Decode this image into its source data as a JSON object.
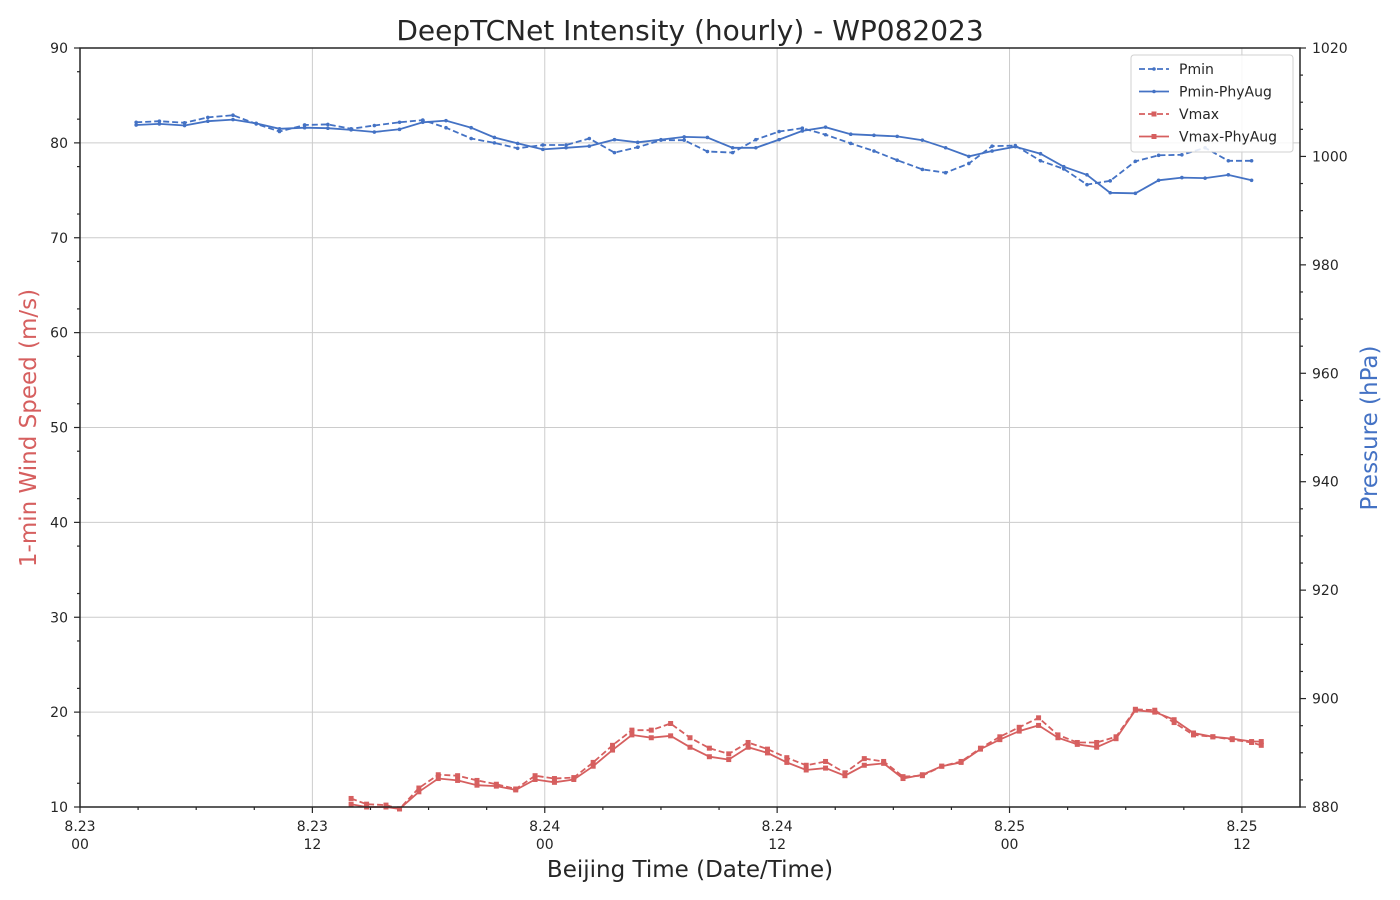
{
  "chart_data": {
    "type": "line",
    "title": "DeepTCNet Intensity (hourly) - WP082023",
    "xlabel": "Beijing Time (Date/Time)",
    "ylabel_left": "1-min Wind Speed (m/s)",
    "ylabel_right": "Pressure (hPa)",
    "ylim_left": [
      10,
      90
    ],
    "ylim_right": [
      880,
      1020
    ],
    "xlim_hours": [
      0,
      63
    ],
    "left_ticks": [
      "10",
      "20",
      "30",
      "40",
      "50",
      "60",
      "70",
      "80",
      "90"
    ],
    "right_ticks": [
      "880",
      "900",
      "920",
      "940",
      "960",
      "980",
      "1000",
      "1020"
    ],
    "x_ticks": [
      {
        "hour": 0,
        "date": "8.23",
        "time": "00"
      },
      {
        "hour": 12,
        "date": "8.23",
        "time": "12"
      },
      {
        "hour": 24,
        "date": "8.24",
        "time": "00"
      },
      {
        "hour": 36,
        "date": "8.24",
        "time": "12"
      },
      {
        "hour": 48,
        "date": "8.25",
        "time": "00"
      },
      {
        "hour": 60,
        "date": "8.25",
        "time": "12"
      }
    ],
    "grid": true,
    "legend_position": "top-right",
    "colors": {
      "pressure": "#4472c4",
      "wind": "#d65f5f"
    },
    "series": [
      {
        "name": "Pmin",
        "axis": "right",
        "style": "dashed",
        "marker": "dot",
        "x": [
          2.9,
          4.1,
          5.4,
          6.6,
          7.9,
          9.1,
          10.3,
          11.6,
          12.8,
          14.0,
          15.2,
          16.5,
          17.7,
          18.9,
          20.2,
          21.4,
          22.6,
          23.9,
          25.1,
          26.3,
          27.6,
          28.8,
          30.0,
          31.2,
          32.4,
          33.7,
          34.9,
          36.1,
          37.3,
          38.5,
          39.8,
          41.0,
          42.2,
          43.5,
          44.7,
          45.9,
          47.1,
          48.3,
          49.6,
          50.8,
          52.0,
          53.2,
          54.5,
          55.7,
          56.9,
          58.1,
          59.3,
          60.5
        ],
        "values": [
          1006.3,
          1006.5,
          1006.2,
          1007.2,
          1007.6,
          1006.0,
          1004.6,
          1005.8,
          1005.9,
          1005.1,
          1005.7,
          1006.3,
          1006.7,
          1005.3,
          1003.3,
          1002.5,
          1001.5,
          1002.1,
          1002.1,
          1003.3,
          1000.7,
          1001.7,
          1003.0,
          1003.0,
          1000.9,
          1000.7,
          1003.1,
          1004.6,
          1005.2,
          1004.0,
          1002.4,
          1001.0,
          999.3,
          997.6,
          997.0,
          998.7,
          1001.9,
          1002.0,
          999.2,
          997.7,
          994.8,
          995.5,
          999.1,
          1000.2,
          1000.3,
          1001.6,
          999.2,
          999.2
        ]
      },
      {
        "name": "Pmin-PhyAug",
        "axis": "right",
        "style": "solid",
        "marker": "dot",
        "x": [
          2.9,
          4.1,
          5.4,
          6.6,
          7.9,
          9.1,
          10.3,
          11.6,
          12.8,
          14.0,
          15.2,
          16.5,
          17.7,
          18.9,
          20.2,
          21.4,
          22.6,
          23.9,
          25.1,
          26.3,
          27.6,
          28.8,
          30.0,
          31.2,
          32.4,
          33.7,
          34.9,
          36.1,
          37.3,
          38.5,
          39.8,
          41.0,
          42.2,
          43.5,
          44.7,
          45.9,
          47.1,
          48.3,
          49.6,
          50.8,
          52.0,
          53.2,
          54.5,
          55.7,
          56.9,
          58.1,
          59.3,
          60.5
        ],
        "values": [
          1005.8,
          1006.0,
          1005.7,
          1006.5,
          1006.8,
          1006.1,
          1005.1,
          1005.3,
          1005.2,
          1004.9,
          1004.5,
          1005.0,
          1006.3,
          1006.6,
          1005.3,
          1003.5,
          1002.4,
          1001.3,
          1001.6,
          1001.9,
          1003.1,
          1002.6,
          1003.1,
          1003.6,
          1003.5,
          1001.6,
          1001.6,
          1003.1,
          1004.7,
          1005.4,
          1004.1,
          1003.9,
          1003.7,
          1003.0,
          1001.6,
          1000.0,
          1001.0,
          1001.8,
          1000.5,
          998.1,
          996.6,
          993.3,
          993.2,
          995.6,
          996.1,
          996.0,
          996.6,
          995.6
        ]
      },
      {
        "name": "Vmax",
        "axis": "left",
        "style": "dashed",
        "marker": "square",
        "x": [
          14.0,
          14.8,
          15.8,
          16.5,
          17.5,
          18.5,
          19.5,
          20.5,
          21.5,
          22.5,
          23.5,
          24.5,
          25.5,
          26.5,
          27.5,
          28.5,
          29.5,
          30.5,
          31.5,
          32.5,
          33.5,
          34.5,
          35.5,
          36.5,
          37.5,
          38.5,
          39.5,
          40.5,
          41.5,
          42.5,
          43.5,
          44.5,
          45.5,
          46.5,
          47.5,
          48.5,
          49.5,
          50.5,
          51.5,
          52.5,
          53.5,
          54.5,
          55.5,
          56.5,
          57.5,
          58.5,
          59.5,
          60.5,
          61.0
        ],
        "values": [
          10.9,
          10.3,
          10.2,
          9.8,
          12.0,
          13.4,
          13.3,
          12.8,
          12.4,
          11.9,
          13.3,
          13.0,
          13.1,
          14.7,
          16.5,
          18.1,
          18.1,
          18.8,
          17.3,
          16.2,
          15.6,
          16.8,
          16.1,
          15.2,
          14.4,
          14.8,
          13.6,
          15.1,
          14.8,
          13.2,
          13.3,
          14.3,
          14.8,
          16.2,
          17.4,
          18.4,
          19.4,
          17.6,
          16.8,
          16.8,
          17.4,
          20.3,
          20.2,
          18.9,
          17.6,
          17.4,
          17.1,
          16.8,
          16.5
        ]
      },
      {
        "name": "Vmax-PhyAug",
        "axis": "left",
        "style": "solid",
        "marker": "square",
        "x": [
          14.0,
          14.8,
          15.8,
          16.5,
          17.5,
          18.5,
          19.5,
          20.5,
          21.5,
          22.5,
          23.5,
          24.5,
          25.5,
          26.5,
          27.5,
          28.5,
          29.5,
          30.5,
          31.5,
          32.5,
          33.5,
          34.5,
          35.5,
          36.5,
          37.5,
          38.5,
          39.5,
          40.5,
          41.5,
          42.5,
          43.5,
          44.5,
          45.5,
          46.5,
          47.5,
          48.5,
          49.5,
          50.5,
          51.5,
          52.5,
          53.5,
          54.5,
          55.5,
          56.5,
          57.5,
          58.5,
          59.5,
          60.5,
          61.0
        ],
        "values": [
          10.3,
          10.0,
          10.0,
          9.8,
          11.6,
          13.0,
          12.8,
          12.3,
          12.2,
          11.8,
          12.9,
          12.6,
          12.9,
          14.3,
          16.0,
          17.6,
          17.3,
          17.5,
          16.3,
          15.3,
          15.0,
          16.3,
          15.7,
          14.7,
          13.9,
          14.1,
          13.3,
          14.4,
          14.6,
          13.0,
          13.4,
          14.3,
          14.7,
          16.1,
          17.1,
          18.0,
          18.6,
          17.3,
          16.6,
          16.3,
          17.2,
          20.2,
          20.0,
          19.2,
          17.8,
          17.4,
          17.2,
          16.9,
          16.9
        ]
      }
    ]
  }
}
